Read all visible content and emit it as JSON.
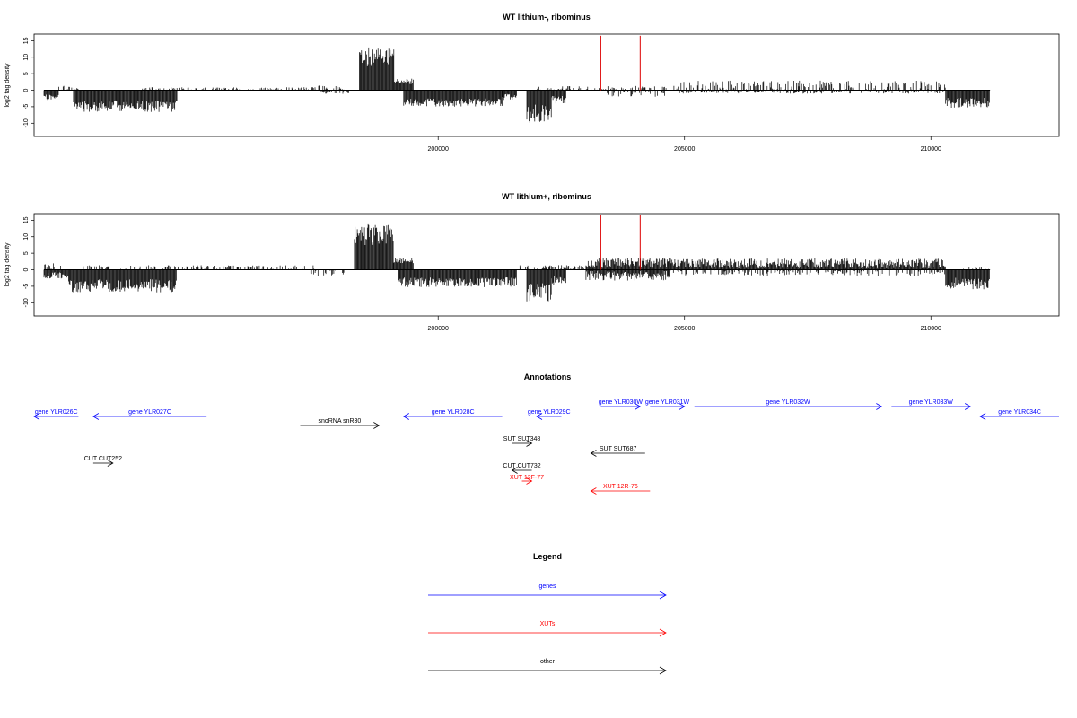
{
  "chart_data": [
    {
      "type": "bar",
      "title": "WT lithium-, ribominus",
      "xlabel": "",
      "ylabel": "log2 tag density",
      "xlim": [
        191800,
        212600
      ],
      "ylim": [
        -14,
        17
      ],
      "yticks": [
        -10,
        -5,
        0,
        5,
        10,
        15
      ],
      "xticks": [
        200000,
        205000,
        210000
      ],
      "grid": false,
      "data_range": [
        192000,
        211200
      ],
      "blocks": [
        {
          "start": 192000,
          "end": 192300,
          "sign": -1,
          "mean": 2.0,
          "amp": 2.0
        },
        {
          "start": 192300,
          "end": 192700,
          "sign": 1,
          "mean": 0.6,
          "amp": 1.2
        },
        {
          "start": 192600,
          "end": 194700,
          "sign": -1,
          "mean": 4.5,
          "amp": 3.5
        },
        {
          "start": 194000,
          "end": 197500,
          "sign": 1,
          "mean": 0.3,
          "amp": 1.0
        },
        {
          "start": 197500,
          "end": 198100,
          "sign": 1,
          "mean": 0.6,
          "amp": 1.4
        },
        {
          "start": 197600,
          "end": 198200,
          "sign": -1,
          "mean": 0.4,
          "amp": 1.2
        },
        {
          "start": 198400,
          "end": 199100,
          "sign": 1,
          "mean": 9.5,
          "amp": 6.0
        },
        {
          "start": 199100,
          "end": 199500,
          "sign": 1,
          "mean": 2.5,
          "amp": 2.0
        },
        {
          "start": 199300,
          "end": 201300,
          "sign": -1,
          "mean": 3.5,
          "amp": 2.5
        },
        {
          "start": 201300,
          "end": 201600,
          "sign": -1,
          "mean": 1.8,
          "amp": 2.0
        },
        {
          "start": 201800,
          "end": 202300,
          "sign": -1,
          "mean": 6.5,
          "amp": 5.5
        },
        {
          "start": 202300,
          "end": 202600,
          "sign": -1,
          "mean": 2.5,
          "amp": 2.5
        },
        {
          "start": 202000,
          "end": 203400,
          "sign": 1,
          "mean": 0.5,
          "amp": 1.2
        },
        {
          "start": 203400,
          "end": 204600,
          "sign": -1,
          "mean": 0.5,
          "amp": 2.5
        },
        {
          "start": 203400,
          "end": 204900,
          "sign": 1,
          "mean": 0.4,
          "amp": 1.5
        },
        {
          "start": 204900,
          "end": 210300,
          "sign": 1,
          "mean": 1.2,
          "amp": 2.8
        },
        {
          "start": 204900,
          "end": 210300,
          "sign": -1,
          "mean": 0.3,
          "amp": 1.2
        },
        {
          "start": 210300,
          "end": 211200,
          "sign": -1,
          "mean": 3.5,
          "amp": 3.0
        }
      ],
      "markers": [
        {
          "x": 203300,
          "y": 16.5,
          "color": "#dd0000"
        },
        {
          "x": 204100,
          "y": 16.5,
          "color": "#dd0000"
        }
      ],
      "seed": 11
    },
    {
      "type": "bar",
      "title": "WT lithium+, ribominus",
      "xlabel": "",
      "ylabel": "log2 tag density",
      "xlim": [
        191800,
        212600
      ],
      "ylim": [
        -14,
        17
      ],
      "yticks": [
        -10,
        -5,
        0,
        5,
        10,
        15
      ],
      "xticks": [
        200000,
        205000,
        210000
      ],
      "grid": false,
      "data_range": [
        192000,
        211200
      ],
      "blocks": [
        {
          "start": 192000,
          "end": 192400,
          "sign": 1,
          "mean": 1.0,
          "amp": 2.0
        },
        {
          "start": 192000,
          "end": 192500,
          "sign": -1,
          "mean": 1.5,
          "amp": 2.0
        },
        {
          "start": 192500,
          "end": 194700,
          "sign": -1,
          "mean": 4.5,
          "amp": 4.0
        },
        {
          "start": 192800,
          "end": 197500,
          "sign": 1,
          "mean": 0.5,
          "amp": 1.5
        },
        {
          "start": 197400,
          "end": 198200,
          "sign": -1,
          "mean": 0.8,
          "amp": 1.8
        },
        {
          "start": 198300,
          "end": 199100,
          "sign": 1,
          "mean": 10.0,
          "amp": 6.5
        },
        {
          "start": 199100,
          "end": 199500,
          "sign": 1,
          "mean": 2.5,
          "amp": 2.0
        },
        {
          "start": 199200,
          "end": 201600,
          "sign": -1,
          "mean": 3.5,
          "amp": 3.0
        },
        {
          "start": 201800,
          "end": 202300,
          "sign": -1,
          "mean": 6.5,
          "amp": 6.0
        },
        {
          "start": 202300,
          "end": 202600,
          "sign": -1,
          "mean": 3.0,
          "amp": 3.0
        },
        {
          "start": 201600,
          "end": 203000,
          "sign": 1,
          "mean": 0.6,
          "amp": 1.4
        },
        {
          "start": 203000,
          "end": 204700,
          "sign": 1,
          "mean": 1.8,
          "amp": 3.0
        },
        {
          "start": 203000,
          "end": 204700,
          "sign": -1,
          "mean": 1.5,
          "amp": 3.0
        },
        {
          "start": 204700,
          "end": 210300,
          "sign": 1,
          "mean": 1.6,
          "amp": 3.0
        },
        {
          "start": 204700,
          "end": 210300,
          "sign": -1,
          "mean": 0.6,
          "amp": 2.0
        },
        {
          "start": 210300,
          "end": 211200,
          "sign": -1,
          "mean": 3.8,
          "amp": 3.5
        },
        {
          "start": 210600,
          "end": 211200,
          "sign": 1,
          "mean": 0.4,
          "amp": 1.0
        }
      ],
      "markers": [
        {
          "x": 203300,
          "y": 16.5,
          "color": "#dd0000"
        },
        {
          "x": 204100,
          "y": 16.5,
          "color": "#dd0000"
        }
      ],
      "seed": 29
    }
  ],
  "annotations": {
    "title": "Annotations",
    "features": [
      {
        "label": "gene YLR026C",
        "kind": "gene",
        "dir": "left",
        "x0": 191800,
        "x1": 192700,
        "row": 0
      },
      {
        "label": "gene YLR027C",
        "kind": "gene",
        "dir": "left",
        "x0": 193000,
        "x1": 195300,
        "row": 0
      },
      {
        "label": "snoRNA snR30",
        "kind": "other",
        "dir": "right",
        "x0": 197200,
        "x1": 198800,
        "row": 1
      },
      {
        "label": "gene YLR028C",
        "kind": "gene",
        "dir": "left",
        "x0": 199300,
        "x1": 201300,
        "row": 0
      },
      {
        "label": "gene YLR029C",
        "kind": "gene",
        "dir": "left",
        "x0": 202000,
        "x1": 202500,
        "row": 0
      },
      {
        "label": "gene YLR030W",
        "kind": "gene",
        "dir": "right",
        "x0": 203300,
        "x1": 204100,
        "row": -1
      },
      {
        "label": "gene YLR031W",
        "kind": "gene",
        "dir": "right",
        "x0": 204300,
        "x1": 205000,
        "row": -1
      },
      {
        "label": "gene YLR032W",
        "kind": "gene",
        "dir": "right",
        "x0": 205200,
        "x1": 209000,
        "row": -1
      },
      {
        "label": "gene YLR033W",
        "kind": "gene",
        "dir": "right",
        "x0": 209200,
        "x1": 210800,
        "row": -1
      },
      {
        "label": "gene YLR034C",
        "kind": "gene",
        "dir": "left",
        "x0": 211000,
        "x1": 212600,
        "row": 0
      },
      {
        "label": "SUT SUT348",
        "kind": "other",
        "dir": "right",
        "x0": 201500,
        "x1": 201900,
        "row": 3
      },
      {
        "label": "SUT SUT687",
        "kind": "other",
        "dir": "left",
        "x0": 203100,
        "x1": 204200,
        "row": 4
      },
      {
        "label": "CUT CUT252",
        "kind": "other",
        "dir": "right",
        "x0": 193000,
        "x1": 193400,
        "row": 5
      },
      {
        "label": "CUT CUT732",
        "kind": "other",
        "dir": "left",
        "x0": 201500,
        "x1": 201900,
        "row": 6
      },
      {
        "label": "XUT 12F-77",
        "kind": "xut",
        "dir": "right",
        "x0": 201700,
        "x1": 201900,
        "row": 7
      },
      {
        "label": "XUT 12R-76",
        "kind": "xut",
        "dir": "left",
        "x0": 203100,
        "x1": 204300,
        "row": 8
      }
    ]
  },
  "legend": {
    "title": "Legend",
    "items": [
      {
        "label": "genes",
        "color": "#0000ff"
      },
      {
        "label": "XUTs",
        "color": "#ff0000"
      },
      {
        "label": "other",
        "color": "#000000"
      }
    ]
  },
  "colors": {
    "gene": "#0000ff",
    "xut": "#ff0000",
    "other": "#000000"
  }
}
